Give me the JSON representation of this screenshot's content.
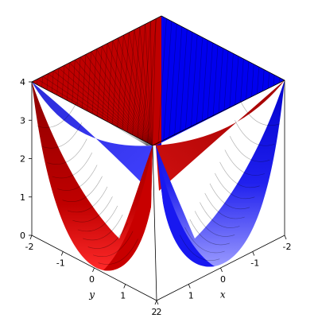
{
  "chart_data": {
    "type": "surface3d",
    "title": "",
    "xlabel": "x",
    "ylabel": "y",
    "zlabel": "",
    "xlim": [
      -2,
      2
    ],
    "ylim": [
      -2,
      2
    ],
    "zlim": [
      0,
      4
    ],
    "ticks": {
      "x": [
        "-2",
        "-1",
        "0",
        "1",
        "2"
      ],
      "y": [
        "-2",
        "-1",
        "0",
        "1",
        "2"
      ],
      "z": [
        "0",
        "1",
        "2",
        "3",
        "4"
      ]
    },
    "series": [
      {
        "expression": "z = x^2",
        "color": "#bf0000",
        "highlight": "#ff2020"
      },
      {
        "expression": "z = y^2",
        "color": "#0000ee",
        "highlight": "#8080ff"
      }
    ],
    "frame": "boxed",
    "grid_mesh": true
  }
}
